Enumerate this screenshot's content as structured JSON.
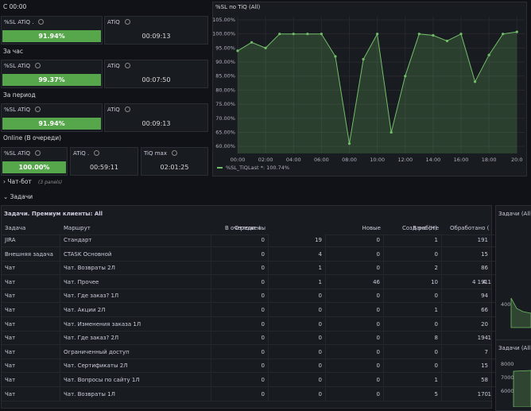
{
  "stat_rows": [
    {
      "header": "С 00:00",
      "panels": [
        {
          "title": "%SL ATiQ .",
          "value": "91.94%",
          "gauge": true
        },
        {
          "title": "ATiQ",
          "value": "00:09:13"
        }
      ]
    },
    {
      "header": "За час",
      "panels": [
        {
          "title": "%SL ATiQ",
          "value": "99.37%",
          "gauge": true
        },
        {
          "title": "ATiQ",
          "value": "00:07:50"
        }
      ]
    },
    {
      "header": "За период",
      "panels": [
        {
          "title": "%SL ATiQ",
          "value": "91.94%",
          "gauge": true
        },
        {
          "title": "ATiQ",
          "value": "00:09:13"
        }
      ]
    },
    {
      "header": "Online (В очереди)",
      "panels": [
        {
          "title": "%SL ATiQ",
          "value": "100.00%",
          "gauge": true
        },
        {
          "title": "ATiQ .",
          "value": "00:59:11"
        },
        {
          "title": "TiQ max",
          "value": "02:01:25"
        }
      ]
    }
  ],
  "sl_chart": {
    "type": "line",
    "title": "%SL по TiQ (All)",
    "x": [
      0,
      1,
      2,
      3,
      4,
      5,
      6,
      7,
      8,
      9,
      10,
      11,
      12,
      13,
      14,
      15,
      16,
      17,
      18,
      19,
      20
    ],
    "series": [
      {
        "name": "%SL_TiQ",
        "color": "#73bf69",
        "values": [
          94,
          97,
          95,
          100,
          100,
          100,
          100,
          92,
          61,
          91,
          100,
          65,
          85,
          100,
          99.5,
          97.5,
          100,
          83,
          92.5,
          100,
          100.74
        ]
      }
    ],
    "legend_note": "Last *: 100.74%",
    "xlim": [
      0,
      20.1
    ],
    "xticks": [
      {
        "value": 0,
        "label": "00:00"
      },
      {
        "value": 2,
        "label": "02:00"
      },
      {
        "value": 4,
        "label": "04:00"
      },
      {
        "value": 6,
        "label": "06:00"
      },
      {
        "value": 8,
        "label": "08:00"
      },
      {
        "value": 10,
        "label": "10:00"
      },
      {
        "value": 12,
        "label": "12:00"
      },
      {
        "value": 14,
        "label": "14:00"
      },
      {
        "value": 16,
        "label": "16:00"
      },
      {
        "value": 18,
        "label": "18:00"
      },
      {
        "value": 20,
        "label": "20:0"
      }
    ],
    "ylim": [
      57.5,
      105
    ],
    "yticks": [
      {
        "value": 60,
        "label": "60.00%"
      },
      {
        "value": 65,
        "label": "65.00%"
      },
      {
        "value": 70,
        "label": "70.00%"
      },
      {
        "value": 75,
        "label": "75.00%"
      },
      {
        "value": 80,
        "label": "80.00%"
      },
      {
        "value": 85,
        "label": "85.00%"
      },
      {
        "value": 90,
        "label": "90.00%"
      },
      {
        "value": 95,
        "label": "95.00%"
      },
      {
        "value": 100,
        "label": "100.00%"
      },
      {
        "value": 105,
        "label": "105.00%"
      }
    ],
    "grid": true
  },
  "rows_collapsed": {
    "title": "Чат-бот",
    "note": "(3 panels)"
  },
  "row_open": {
    "title": "Задачи"
  },
  "table": {
    "title": "Задачи. Премиум клиенты: All",
    "columns": [
      "Задача",
      "Маршрут",
      "Отложены",
      "В очереди",
      "Новые",
      "В работе",
      "Создано (Н)",
      "Обработано ("
    ],
    "rows": [
      [
        "JIRA",
        "Стандарт",
        "0",
        "19",
        "0",
        "1",
        "191",
        null
      ],
      [
        "Внешняя задача",
        "CTASK Основной",
        "0",
        "4",
        "0",
        "0",
        "15",
        null
      ],
      [
        "Чат",
        "Чат. Возвраты 2Л",
        "0",
        "1",
        "0",
        "2",
        "86",
        null
      ],
      [
        "Чат",
        "Чат. Прочее",
        "0",
        "1",
        "46",
        "10",
        "4 191",
        "4 1"
      ],
      [
        "Чат",
        "Чат. Где заказ? 1Л",
        "0",
        "0",
        "0",
        "0",
        "94",
        null
      ],
      [
        "Чат",
        "Чат. Акции 2Л",
        "0",
        "0",
        "0",
        "1",
        "66",
        null
      ],
      [
        "Чат",
        "Чат. Изменения заказа 1Л",
        "0",
        "0",
        "0",
        "0",
        "20",
        null
      ],
      [
        "Чат",
        "Чат. Где заказ? 2Л",
        "0",
        "0",
        "0",
        "8",
        "194",
        "1"
      ],
      [
        "Чат",
        "Ограниченный доступ",
        "0",
        "0",
        "0",
        "0",
        "7",
        null
      ],
      [
        "Чат",
        "Чат. Сертификаты 2Л",
        "0",
        "0",
        "0",
        "0",
        "15",
        null
      ],
      [
        "Чат",
        "Чат. Вопросы по сайту 1Л",
        "0",
        "0",
        "0",
        "1",
        "58",
        null
      ],
      [
        "Чат",
        "Чат. Возвраты 1Л",
        "0",
        "0",
        "0",
        "5",
        "170",
        "1"
      ]
    ]
  },
  "side_panels": [
    {
      "title": "Задачи (All)",
      "ticks": [
        "400"
      ]
    },
    {
      "title": "Задачи (All)",
      "ticks": [
        "8000",
        "7000",
        "6000"
      ]
    }
  ]
}
